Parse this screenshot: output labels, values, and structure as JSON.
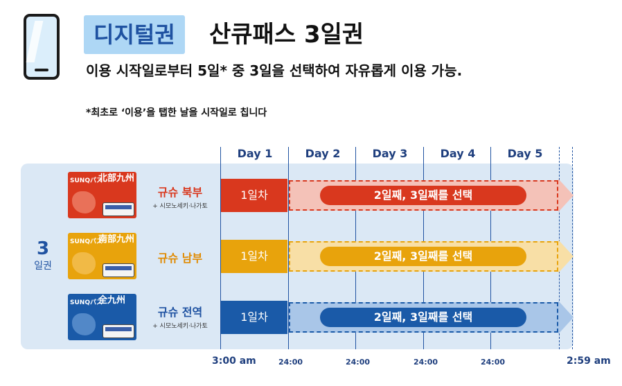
{
  "header": {
    "badge": "디지털권",
    "title": "산큐패스 3일권",
    "subtitle": "이용 시작일로부터 5일* 중 3일을 선택하여 자유롭게 이용 가능.",
    "note": "*최초로 ‘이용’을 탭한 날을 시작일로 칩니다"
  },
  "days": [
    "Day 1",
    "Day 2",
    "Day 3",
    "Day 4",
    "Day 5"
  ],
  "pass_length": {
    "number": "3",
    "unit": "일권"
  },
  "rows": [
    {
      "name": "규슈 북부",
      "sub": "+ 시모노세키·나가토",
      "region_label": "北部九州",
      "logo": "SUNQパス",
      "first_day": "1일차",
      "selection": "2일째, 3일째를 선택",
      "color": "#d9381e",
      "light": "#f4c2b8",
      "name_color": "#d9381e"
    },
    {
      "name": "규슈 남부",
      "sub": "",
      "region_label": "南部九州",
      "logo": "SUNQパス",
      "first_day": "1일차",
      "selection": "2일째, 3일째를 선택",
      "color": "#e8a30c",
      "light": "#f8dfa6",
      "name_color": "#e08a00"
    },
    {
      "name": "규슈 전역",
      "sub": "+ 시모노세키·나가토",
      "region_label": "全九州",
      "logo": "SUNQパス",
      "first_day": "1일차",
      "selection": "2일째, 3일째를 선택",
      "color": "#1a5aa8",
      "light": "#a9c6e8",
      "name_color": "#1f52a1"
    }
  ],
  "times": [
    "3:00 am",
    "24:00",
    "24:00",
    "24:00",
    "24:00",
    "2:59 am"
  ]
}
